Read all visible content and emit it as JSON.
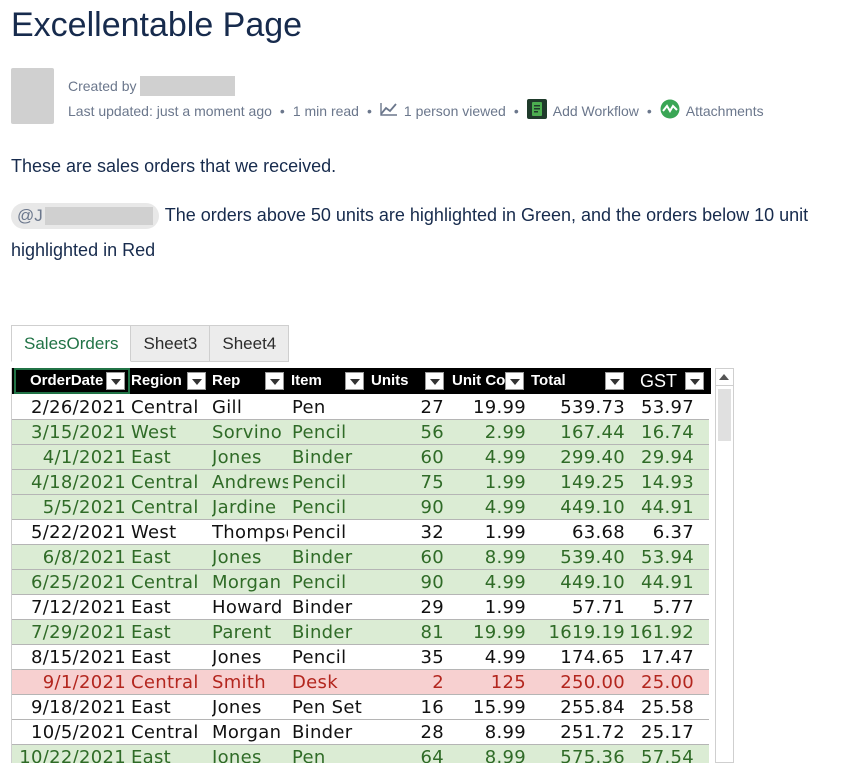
{
  "page": {
    "title": "Excellentable Page",
    "created_by_label": "Created by",
    "last_updated": "Last updated: just a moment ago",
    "read_time": "1 min read",
    "viewed": "1 person viewed",
    "add_workflow": "Add Workflow",
    "attachments": "Attachments",
    "dot": "•"
  },
  "content": {
    "paragraph1": "These are sales orders that we received.",
    "mention": "@J",
    "paragraph2_part1": "The orders above 50 units are highlighted in Green, and the orders below 10 unit",
    "paragraph2_part2": "highlighted in Red"
  },
  "tabs": [
    {
      "label": "SalesOrders",
      "active": true
    },
    {
      "label": "Sheet3",
      "active": false
    },
    {
      "label": "Sheet4",
      "active": false
    }
  ],
  "table": {
    "headers": [
      "OrderDate",
      "Region",
      "Rep",
      "Item",
      "Units",
      "Unit Cost",
      "Total",
      "GST"
    ],
    "rows": [
      {
        "hl": "plain",
        "cells": [
          "2/26/2021",
          "Central",
          "Gill",
          "Pen",
          "27",
          "19.99",
          "539.73",
          "53.97"
        ]
      },
      {
        "hl": "green",
        "cells": [
          "3/15/2021",
          "West",
          "Sorvino",
          "Pencil",
          "56",
          "2.99",
          "167.44",
          "16.74"
        ]
      },
      {
        "hl": "green",
        "cells": [
          "4/1/2021",
          "East",
          "Jones",
          "Binder",
          "60",
          "4.99",
          "299.40",
          "29.94"
        ]
      },
      {
        "hl": "green",
        "cells": [
          "4/18/2021",
          "Central",
          "Andrews",
          "Pencil",
          "75",
          "1.99",
          "149.25",
          "14.93"
        ]
      },
      {
        "hl": "green",
        "cells": [
          "5/5/2021",
          "Central",
          "Jardine",
          "Pencil",
          "90",
          "4.99",
          "449.10",
          "44.91"
        ]
      },
      {
        "hl": "plain",
        "cells": [
          "5/22/2021",
          "West",
          "Thompson",
          "Pencil",
          "32",
          "1.99",
          "63.68",
          "6.37"
        ]
      },
      {
        "hl": "green",
        "cells": [
          "6/8/2021",
          "East",
          "Jones",
          "Binder",
          "60",
          "8.99",
          "539.40",
          "53.94"
        ]
      },
      {
        "hl": "green",
        "cells": [
          "6/25/2021",
          "Central",
          "Morgan",
          "Pencil",
          "90",
          "4.99",
          "449.10",
          "44.91"
        ]
      },
      {
        "hl": "plain",
        "cells": [
          "7/12/2021",
          "East",
          "Howard",
          "Binder",
          "29",
          "1.99",
          "57.71",
          "5.77"
        ]
      },
      {
        "hl": "green",
        "cells": [
          "7/29/2021",
          "East",
          "Parent",
          "Binder",
          "81",
          "19.99",
          "1619.19",
          "161.92"
        ]
      },
      {
        "hl": "plain",
        "cells": [
          "8/15/2021",
          "East",
          "Jones",
          "Pencil",
          "35",
          "4.99",
          "174.65",
          "17.47"
        ]
      },
      {
        "hl": "red",
        "cells": [
          "9/1/2021",
          "Central",
          "Smith",
          "Desk",
          "2",
          "125",
          "250.00",
          "25.00"
        ]
      },
      {
        "hl": "plain",
        "cells": [
          "9/18/2021",
          "East",
          "Jones",
          "Pen Set",
          "16",
          "15.99",
          "255.84",
          "25.58"
        ]
      },
      {
        "hl": "plain",
        "cells": [
          "10/5/2021",
          "Central",
          "Morgan",
          "Binder",
          "28",
          "8.99",
          "251.72",
          "25.17"
        ]
      },
      {
        "hl": "green",
        "cells": [
          "10/22/2021",
          "East",
          "Jones",
          "Pen",
          "64",
          "8.99",
          "575.36",
          "57.54"
        ]
      }
    ]
  },
  "icons": {
    "chart": "line-chart-icon",
    "workflow": "workflow-app-icon",
    "attachments": "attachments-app-icon"
  },
  "colors": {
    "highlight_green": "#dbecd4",
    "highlight_red": "#f7d0d0",
    "active_tab": "#217346"
  }
}
